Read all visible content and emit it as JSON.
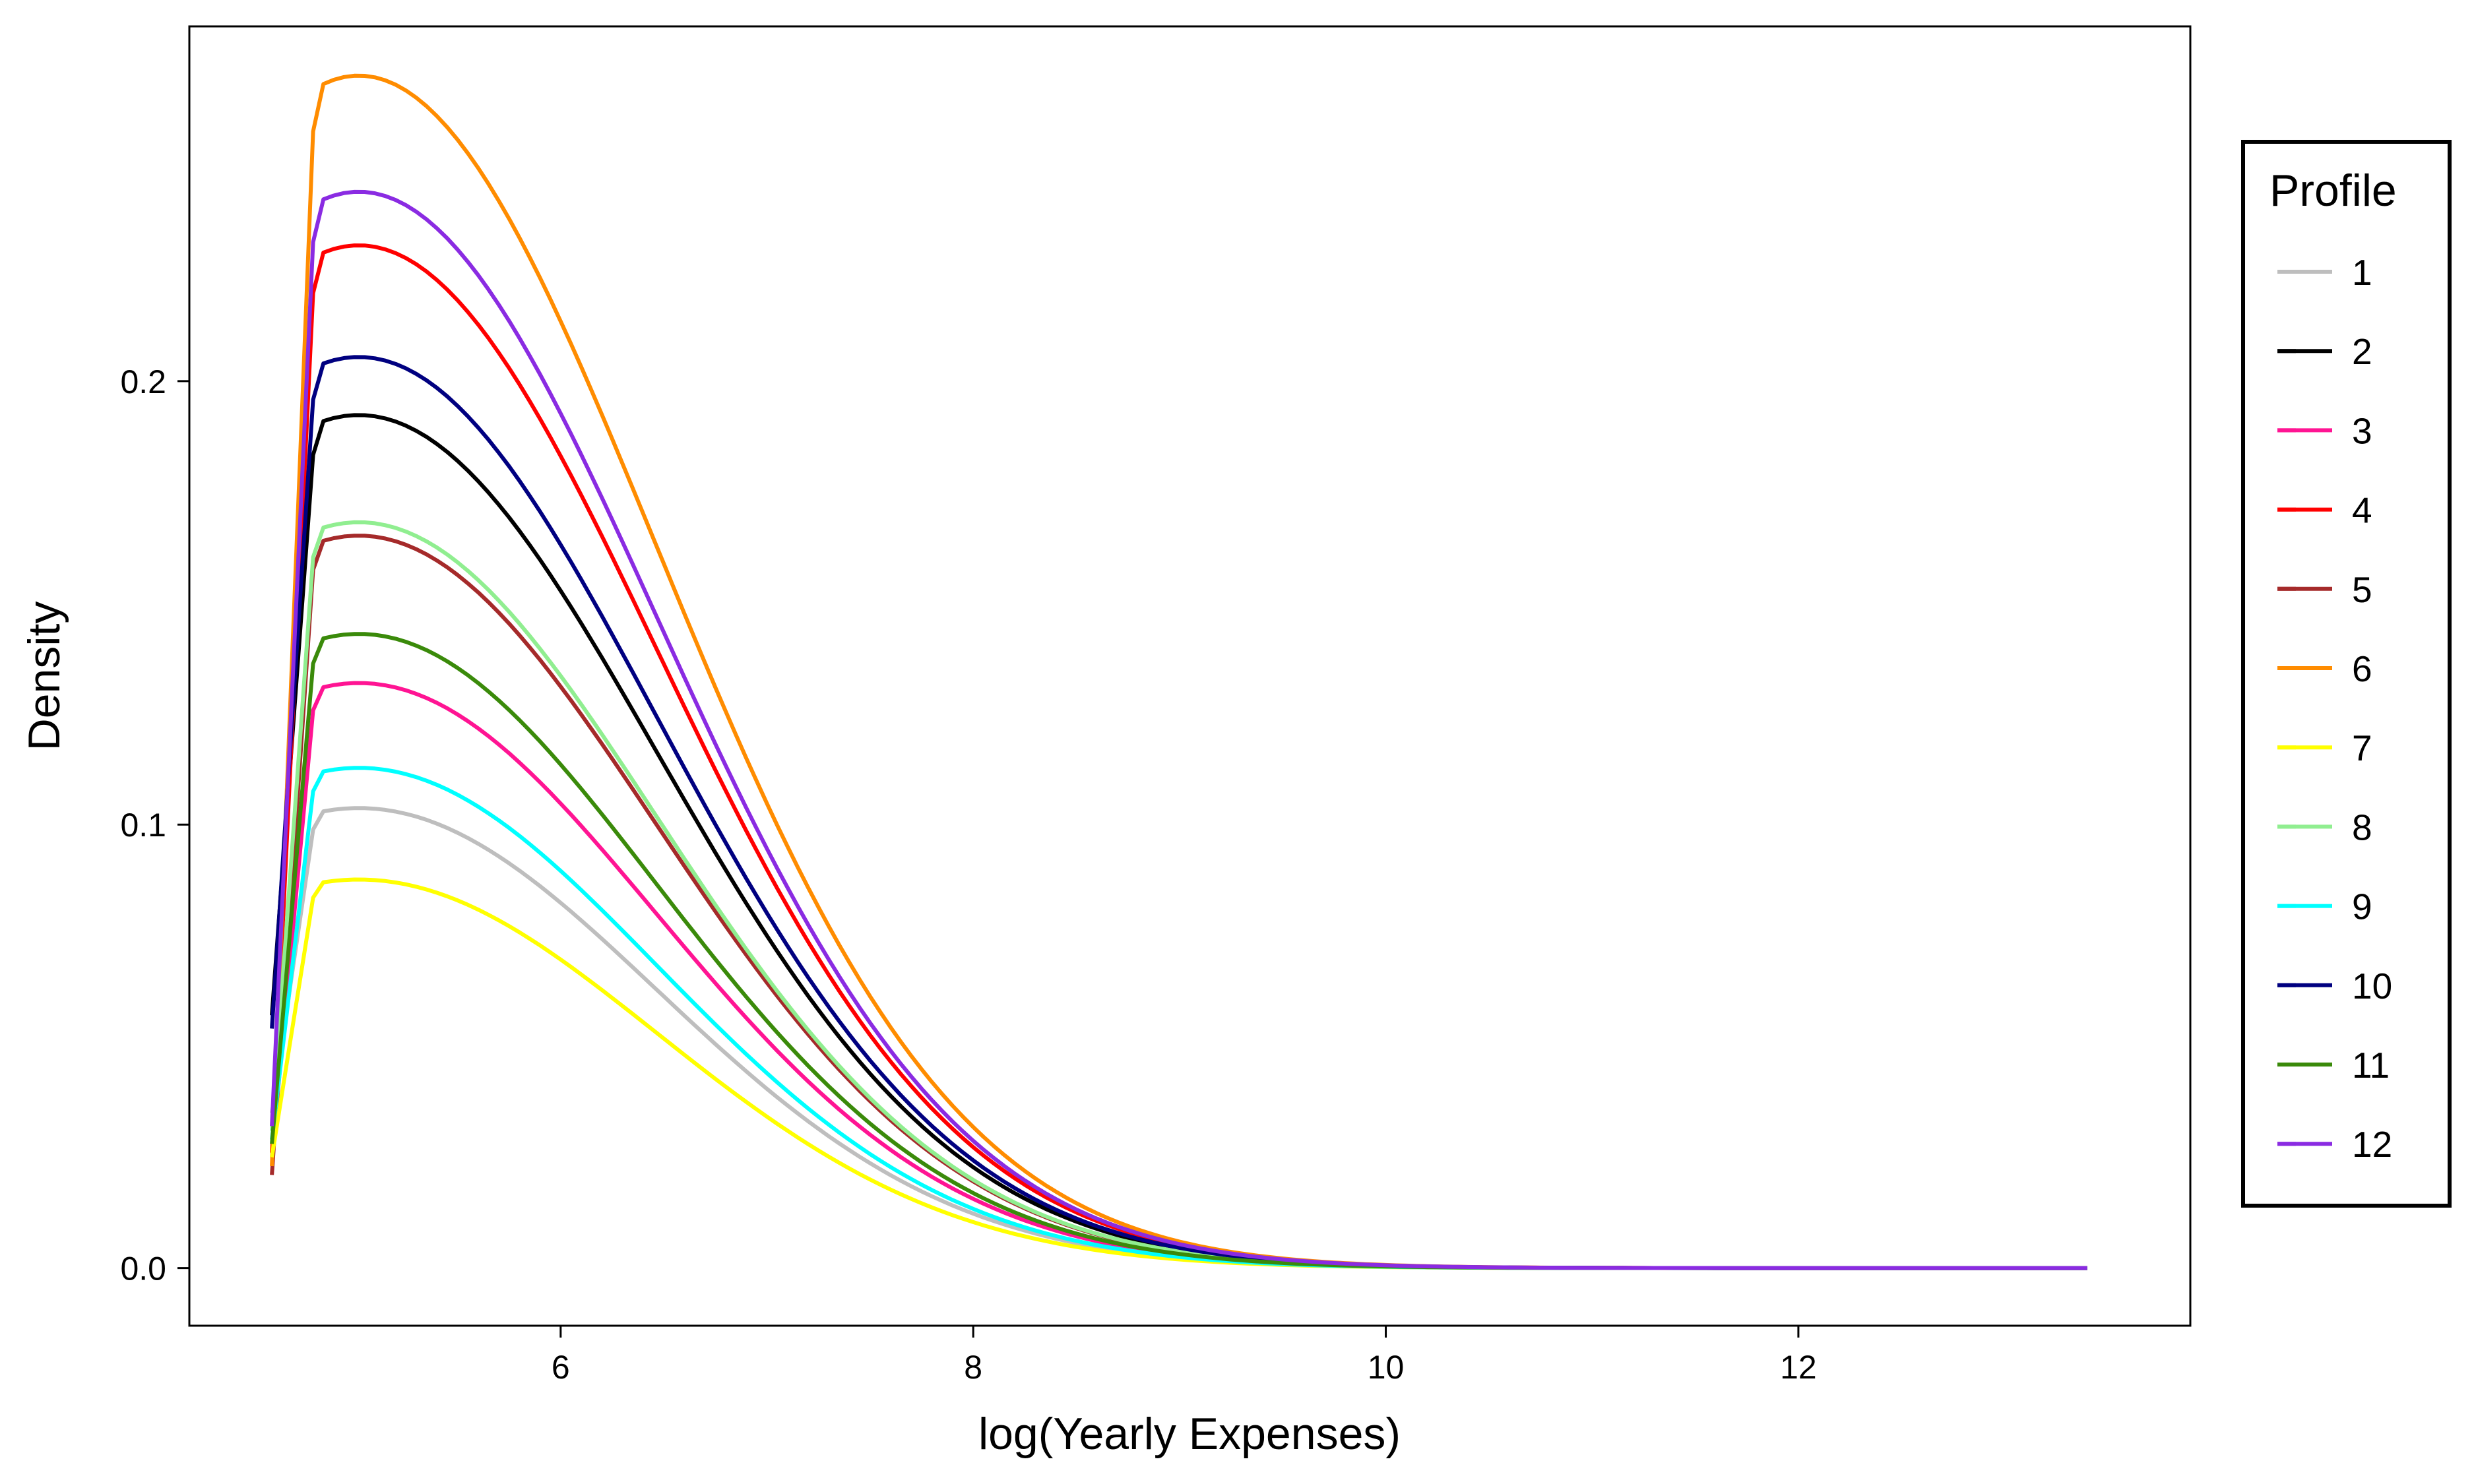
{
  "chart_data": {
    "type": "line",
    "title": "",
    "xlabel": "log(Yearly Expenses)",
    "ylabel": "Density",
    "xlim": [
      4.2,
      13.9
    ],
    "ylim": [
      -0.013,
      0.28
    ],
    "xticks": [
      {
        "value": 6,
        "label": "6"
      },
      {
        "value": 8,
        "label": "8"
      },
      {
        "value": 10,
        "label": "10"
      },
      {
        "value": 12,
        "label": "12"
      }
    ],
    "yticks": [
      {
        "value": 0.0,
        "label": "0.0"
      },
      {
        "value": 0.1,
        "label": "0.1"
      },
      {
        "value": 0.2,
        "label": "0.2"
      }
    ],
    "grid": false,
    "legend": {
      "title": "Profile",
      "placement": "right"
    },
    "x_range": [
      4.6,
      13.4
    ],
    "series": [
      {
        "name": "1",
        "color": "#BEBEBE",
        "start": 0.035,
        "peak": 0.103
      },
      {
        "name": "2",
        "color": "#000000",
        "start": 0.057,
        "peak": 0.191
      },
      {
        "name": "3",
        "color": "#FF1493",
        "start": 0.025,
        "peak": 0.131
      },
      {
        "name": "4",
        "color": "#FF0000",
        "start": 0.026,
        "peak": 0.229
      },
      {
        "name": "5",
        "color": "#A52A2A",
        "start": 0.021,
        "peak": 0.164
      },
      {
        "name": "6",
        "color": "#FF8C00",
        "start": 0.023,
        "peak": 0.267
      },
      {
        "name": "7",
        "color": "#FFFF00",
        "start": 0.025,
        "peak": 0.087
      },
      {
        "name": "8",
        "color": "#90EE90",
        "start": 0.031,
        "peak": 0.167
      },
      {
        "name": "9",
        "color": "#00FFFF",
        "start": 0.029,
        "peak": 0.112
      },
      {
        "name": "10",
        "color": "#000080",
        "start": 0.054,
        "peak": 0.204
      },
      {
        "name": "11",
        "color": "#3A8A0A",
        "start": 0.028,
        "peak": 0.142
      },
      {
        "name": "12",
        "color": "#8A2BE2",
        "start": 0.032,
        "peak": 0.241
      }
    ]
  }
}
